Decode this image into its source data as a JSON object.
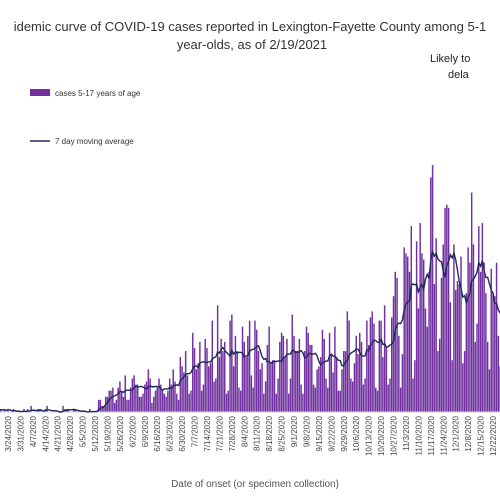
{
  "chart_data": {
    "type": "bar",
    "title_line1": "idemic curve of COVID-19 cases reported in Lexington-Fayette County among 5-1",
    "title_line2": "year-olds, as of 2/19/2021",
    "annotation_line1": "Likely to",
    "annotation_line2": "dela",
    "xlabel": "Date of onset (or specimen collection)",
    "ylim": [
      0,
      105
    ],
    "x_start_date": "2020-03-10",
    "x_end_date": "2021-01-03",
    "x_ticks": [
      "3/24/2020",
      "3/31/2020",
      "4/7/2020",
      "4/14/2020",
      "4/21/2020",
      "4/28/2020",
      "5/5/2020",
      "5/12/2020",
      "5/19/2020",
      "5/26/2020",
      "6/2/2020",
      "6/9/2020",
      "6/16/2020",
      "6/23/2020",
      "6/30/2020",
      "7/7/2020",
      "7/14/2020",
      "7/21/2020",
      "7/28/2020",
      "8/4/2020",
      "8/11/2020",
      "8/18/2020",
      "8/25/2020",
      "9/1/2020",
      "9/8/2020",
      "9/15/2020",
      "9/22/2020",
      "9/29/2020",
      "10/6/2020",
      "10/13/2020",
      "10/20/2020",
      "10/27/2020",
      "11/3/2020",
      "11/10/2020",
      "11/17/2020",
      "11/24/2020",
      "12/1/2020",
      "12/8/2020",
      "12/15/2020",
      "12/22/2020"
    ],
    "series": [
      {
        "name": "cases 5-17 years of age",
        "kind": "bar",
        "color": "#7030A0",
        "anchors": [
          [
            "2020-03-10",
            1
          ],
          [
            "2020-04-20",
            1
          ],
          [
            "2020-05-10",
            2
          ],
          [
            "2020-05-20",
            5
          ],
          [
            "2020-06-01",
            8
          ],
          [
            "2020-06-15",
            9
          ],
          [
            "2020-06-30",
            12
          ],
          [
            "2020-07-10",
            20
          ],
          [
            "2020-07-20",
            23
          ],
          [
            "2020-07-31",
            21
          ],
          [
            "2020-08-10",
            19
          ],
          [
            "2020-08-20",
            17
          ],
          [
            "2020-08-31",
            20
          ],
          [
            "2020-09-10",
            19
          ],
          [
            "2020-09-20",
            17
          ],
          [
            "2020-09-30",
            20
          ],
          [
            "2020-10-10",
            24
          ],
          [
            "2020-10-20",
            27
          ],
          [
            "2020-10-31",
            30
          ],
          [
            "2020-11-08",
            43
          ],
          [
            "2020-11-14",
            54
          ],
          [
            "2020-11-20",
            63
          ],
          [
            "2020-11-26",
            58
          ],
          [
            "2020-12-03",
            52
          ],
          [
            "2020-12-10",
            50
          ],
          [
            "2020-12-17",
            44
          ],
          [
            "2020-12-24",
            33
          ],
          [
            "2021-01-03",
            27
          ]
        ]
      },
      {
        "name": "7 day moving average",
        "kind": "line",
        "color": "#1F2A5C"
      }
    ]
  },
  "legend": {
    "bar_label": "cases 5-17 years of age",
    "line_label": "7 day moving average"
  },
  "colors": {
    "bar": "#7030A0",
    "line": "#1F2A5C",
    "background": "#FFFFFF"
  }
}
